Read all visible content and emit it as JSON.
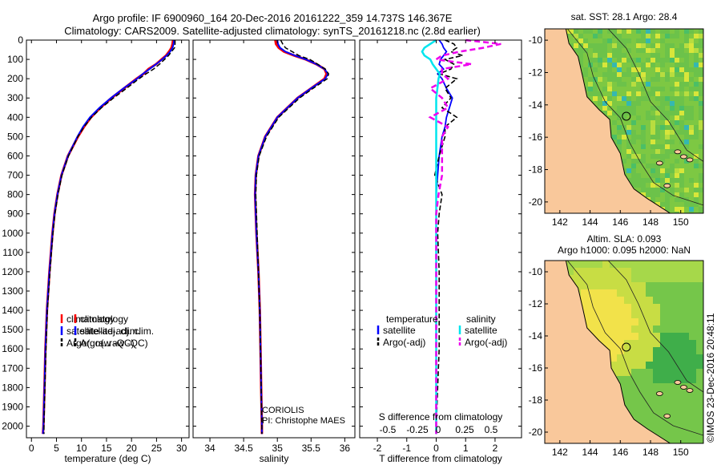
{
  "title_line1": "Argo profile: IF 6900960_164 20-Dec-2016 20161222_359 14.737S 146.367E",
  "title_line2": "Climatology: CARS2009. Satellite-adjusted climatology: synTS_20161218.nc (2.8d earlier)",
  "credit": {
    "line1": "CORIOLIS",
    "line2": "PI: Christophe MAES"
  },
  "stamp": "©IMOS 23-Dec-2016 20:48:11",
  "colors": {
    "climatology": "#ff0000",
    "satellite": "#0000ff",
    "argo": "#000000",
    "sal_sat": "#00e5ee",
    "sal_argo": "#ee00ee"
  },
  "depth_ticks": [
    0,
    100,
    200,
    300,
    400,
    500,
    600,
    700,
    800,
    900,
    1000,
    1100,
    1200,
    1300,
    1400,
    1500,
    1600,
    1700,
    1800,
    1900,
    2000
  ],
  "chart_data": [
    {
      "type": "line",
      "xlabel": "temperature (deg C)",
      "xlim": [
        -1,
        31.5
      ],
      "ylim": [
        2060,
        0
      ],
      "xticks": [
        0,
        5,
        10,
        15,
        20,
        25,
        30
      ],
      "legend": [
        "climatology",
        "satellite-adj. clim.",
        "Argo(..raw -QC)"
      ],
      "depth": [
        0,
        20,
        40,
        60,
        80,
        100,
        125,
        150,
        175,
        200,
        250,
        300,
        350,
        400,
        450,
        500,
        600,
        700,
        800,
        900,
        1000,
        1200,
        1400,
        1600,
        1800,
        2000,
        2040
      ],
      "series": [
        {
          "name": "climatology",
          "values": [
            28.3,
            28.2,
            28.0,
            27.5,
            26.9,
            26.0,
            24.9,
            23.4,
            22.4,
            21.0,
            18.5,
            16.0,
            13.8,
            11.9,
            10.5,
            9.3,
            7.3,
            6.0,
            5.2,
            4.6,
            4.2,
            3.6,
            3.1,
            2.8,
            2.6,
            2.4,
            2.3
          ]
        },
        {
          "name": "satellite-adj. clim.",
          "values": [
            28.5,
            28.4,
            28.2,
            27.7,
            27.0,
            26.1,
            24.9,
            23.6,
            22.3,
            21.1,
            18.4,
            15.9,
            13.6,
            11.7,
            10.3,
            9.2,
            7.3,
            6.0,
            5.2,
            4.6,
            4.2,
            3.6,
            3.1,
            2.8,
            2.6,
            2.4,
            2.3
          ]
        },
        {
          "name": "Argo(..raw -QC)",
          "values": [
            28.7,
            28.7,
            28.6,
            28.0,
            27.4,
            26.6,
            25.6,
            24.4,
            22.9,
            21.5,
            19.0,
            16.4,
            14.0,
            12.0,
            10.5,
            9.3,
            7.4,
            6.1,
            5.3,
            4.7,
            4.3,
            3.7,
            3.2,
            2.9,
            2.7,
            2.5,
            2.5
          ]
        }
      ]
    },
    {
      "type": "line",
      "xlabel": "salinity",
      "xlim": [
        33.75,
        36.15
      ],
      "ylim": [
        2060,
        0
      ],
      "xticks": [
        34,
        34.5,
        35,
        35.5,
        36
      ],
      "legend": [
        "climatology",
        "satellite-adj. clim.",
        "Argo(..raw -QC)"
      ],
      "depth": [
        0,
        20,
        40,
        60,
        80,
        100,
        125,
        150,
        175,
        200,
        250,
        300,
        400,
        500,
        600,
        700,
        800,
        1000,
        1200,
        1400,
        1600,
        1800,
        2000,
        2040
      ],
      "series": [
        {
          "name": "climatology",
          "values": [
            34.97,
            34.98,
            35.02,
            35.1,
            35.25,
            35.42,
            35.58,
            35.7,
            35.73,
            35.7,
            35.5,
            35.3,
            35.0,
            34.82,
            34.72,
            34.68,
            34.67,
            34.69,
            34.72,
            34.74,
            34.75,
            34.76,
            34.77,
            34.77
          ]
        },
        {
          "name": "satellite-adj. clim.",
          "values": [
            35.0,
            35.01,
            35.04,
            35.12,
            35.26,
            35.42,
            35.58,
            35.7,
            35.75,
            35.71,
            35.5,
            35.3,
            35.0,
            34.82,
            34.72,
            34.68,
            34.67,
            34.69,
            34.72,
            34.74,
            34.75,
            34.76,
            34.77,
            34.77
          ]
        },
        {
          "name": "Argo(..raw -QC)",
          "values": [
            35.05,
            35.08,
            35.12,
            35.22,
            35.32,
            35.48,
            35.6,
            35.71,
            35.76,
            35.74,
            35.53,
            35.33,
            35.02,
            34.84,
            34.73,
            34.69,
            34.68,
            34.7,
            34.72,
            34.74,
            34.75,
            34.76,
            34.77,
            34.77
          ]
        }
      ]
    },
    {
      "type": "line",
      "xlabel": "T difference from climatology",
      "xlabel_top": "S difference from climatology",
      "xlim": [
        -2.6,
        2.9
      ],
      "ylim": [
        2060,
        0
      ],
      "xticks": [
        -2,
        -1,
        0,
        1,
        2
      ],
      "xticks_top": [
        "-0.5",
        "-0.25",
        "0",
        "0.25",
        "0.5"
      ],
      "legend": [
        "temperature",
        "satellite",
        "Argo(-adj)",
        "salinity",
        "satellite",
        "Argo(-adj)"
      ],
      "depth": [
        0,
        20,
        40,
        60,
        80,
        100,
        125,
        150,
        175,
        200,
        250,
        300,
        350,
        400,
        450,
        500,
        600,
        700,
        800,
        900,
        1000,
        1200,
        1400,
        1600,
        1800,
        2000,
        2040
      ],
      "series": [
        {
          "name": "temperature satellite",
          "values": [
            0.1,
            0.2,
            0.25,
            0.35,
            0.25,
            0.15,
            0.1,
            0.25,
            0.05,
            0.2,
            0.35,
            0.55,
            0.45,
            0.35,
            0.3,
            0.2,
            0.1,
            0.05,
            0,
            0,
            0,
            0,
            0,
            0,
            0,
            0,
            0
          ]
        },
        {
          "name": "temperature Argo(-adj)",
          "values": [
            0.3,
            0.6,
            0.7,
            0.5,
            0.9,
            0.3,
            0.6,
            0.5,
            0.1,
            0.7,
            0.3,
            0.5,
            0.2,
            0.7,
            0.3,
            0.3,
            0.1,
            -0.05,
            0.2,
            0.1,
            0.05,
            0.1,
            0.1,
            0.1,
            0.05,
            0,
            0
          ]
        },
        {
          "name": "salinity satellite",
          "values": [
            0.0,
            -0.05,
            -0.1,
            -0.12,
            -0.1,
            -0.05,
            -0.03,
            0,
            0.03,
            0.02,
            0.01,
            0,
            0,
            0,
            0,
            0,
            0,
            0,
            0,
            0,
            0,
            0,
            0,
            0,
            0,
            0,
            0
          ]
        },
        {
          "name": "salinity Argo(-adj)",
          "values": [
            0.25,
            0.55,
            0.4,
            0.2,
            0.05,
            0,
            0.3,
            0.05,
            0.05,
            0.1,
            -0.05,
            0.05,
            0.1,
            -0.05,
            0.1,
            0.05,
            0.05,
            0.05,
            0.02,
            0,
            0,
            0,
            0,
            0,
            0,
            0,
            0
          ]
        }
      ]
    },
    {
      "type": "heatmap",
      "title": "sat. SST: 28.1 Argo: 28.4",
      "xlim": [
        141,
        151.5
      ],
      "ylim": [
        -20.7,
        -9.3
      ],
      "xticks": [
        142,
        144,
        146,
        148,
        150
      ],
      "yticks": [
        -10,
        -12,
        -14,
        -16,
        -18,
        -20
      ],
      "marker": [
        146.4,
        -14.7
      ]
    },
    {
      "type": "heatmap",
      "title_line1": "Altim. SLA: 0.093",
      "title_line2": "Argo h1000: 0.095 h2000: NaN",
      "xlim": [
        141,
        151.5
      ],
      "ylim": [
        -20.7,
        -9.3
      ],
      "xticks": [
        142,
        144,
        146,
        148,
        150
      ],
      "yticks": [
        -10,
        -12,
        -14,
        -16,
        -18,
        -20
      ],
      "marker": [
        146.4,
        -14.7
      ]
    }
  ]
}
